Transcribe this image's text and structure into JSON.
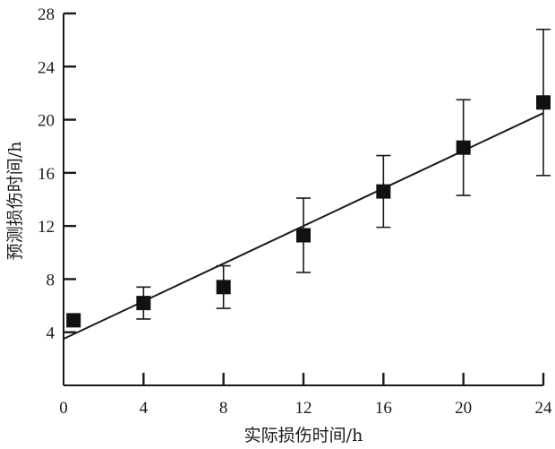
{
  "chart_data": {
    "type": "scatter",
    "title": "",
    "xlabel": "实际损伤时间/h",
    "ylabel": "预测损伤时间/h",
    "xlim": [
      0,
      24
    ],
    "ylim": [
      0,
      28
    ],
    "x_ticks": [
      0,
      4,
      8,
      12,
      16,
      20,
      24
    ],
    "y_ticks": [
      4,
      8,
      12,
      16,
      20,
      24,
      28
    ],
    "grid": false,
    "legend": "none",
    "colors": {
      "axis": "#1a1a1a",
      "marker": "#111111",
      "fit_line": "#1a1a1a",
      "error_bar": "#1a1a1a"
    },
    "series": [
      {
        "marker": "square",
        "points": [
          {
            "x": 0.5,
            "y": 4.9,
            "err": 0.0
          },
          {
            "x": 4,
            "y": 6.2,
            "err": 1.2
          },
          {
            "x": 8,
            "y": 7.4,
            "err": 1.6
          },
          {
            "x": 12,
            "y": 11.3,
            "err": 2.8
          },
          {
            "x": 16,
            "y": 14.6,
            "err": 2.7
          },
          {
            "x": 20,
            "y": 17.9,
            "err": 3.6
          },
          {
            "x": 24,
            "y": 21.3,
            "err": 5.5
          }
        ]
      }
    ],
    "fit_line": {
      "x": [
        0,
        24
      ],
      "y": [
        3.5,
        20.5
      ]
    }
  }
}
